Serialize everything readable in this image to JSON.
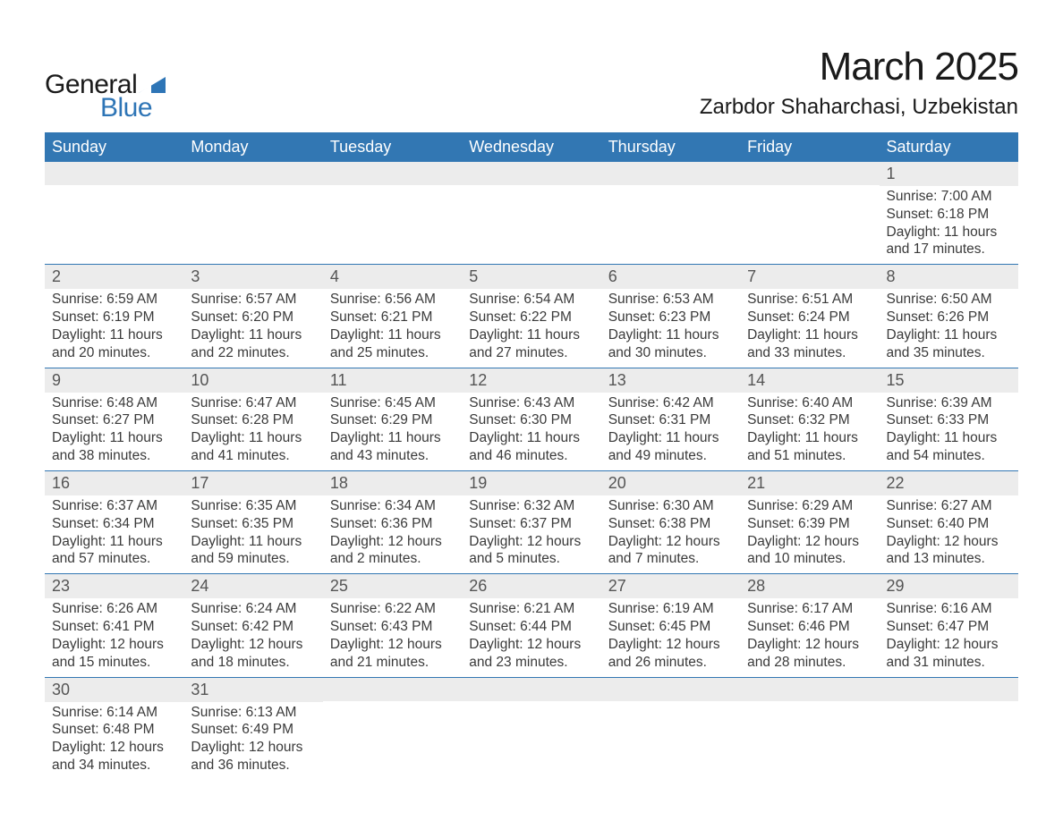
{
  "brand": {
    "general": "General",
    "blue": "Blue",
    "accent_color": "#2e75b6"
  },
  "title": "March 2025",
  "location": "Zarbdor Shaharchasi, Uzbekistan",
  "colors": {
    "header_bg": "#3277b3",
    "header_text": "#ffffff",
    "daynum_bg": "#ececec",
    "row_border": "#3277b3",
    "body_text": "#3a3a3a"
  },
  "weekdays": [
    "Sunday",
    "Monday",
    "Tuesday",
    "Wednesday",
    "Thursday",
    "Friday",
    "Saturday"
  ],
  "grid": {
    "first_weekday_index": 6,
    "days_in_month": 31
  },
  "days": {
    "1": {
      "sunrise": "7:00 AM",
      "sunset": "6:18 PM",
      "daylight": "11 hours and 17 minutes."
    },
    "2": {
      "sunrise": "6:59 AM",
      "sunset": "6:19 PM",
      "daylight": "11 hours and 20 minutes."
    },
    "3": {
      "sunrise": "6:57 AM",
      "sunset": "6:20 PM",
      "daylight": "11 hours and 22 minutes."
    },
    "4": {
      "sunrise": "6:56 AM",
      "sunset": "6:21 PM",
      "daylight": "11 hours and 25 minutes."
    },
    "5": {
      "sunrise": "6:54 AM",
      "sunset": "6:22 PM",
      "daylight": "11 hours and 27 minutes."
    },
    "6": {
      "sunrise": "6:53 AM",
      "sunset": "6:23 PM",
      "daylight": "11 hours and 30 minutes."
    },
    "7": {
      "sunrise": "6:51 AM",
      "sunset": "6:24 PM",
      "daylight": "11 hours and 33 minutes."
    },
    "8": {
      "sunrise": "6:50 AM",
      "sunset": "6:26 PM",
      "daylight": "11 hours and 35 minutes."
    },
    "9": {
      "sunrise": "6:48 AM",
      "sunset": "6:27 PM",
      "daylight": "11 hours and 38 minutes."
    },
    "10": {
      "sunrise": "6:47 AM",
      "sunset": "6:28 PM",
      "daylight": "11 hours and 41 minutes."
    },
    "11": {
      "sunrise": "6:45 AM",
      "sunset": "6:29 PM",
      "daylight": "11 hours and 43 minutes."
    },
    "12": {
      "sunrise": "6:43 AM",
      "sunset": "6:30 PM",
      "daylight": "11 hours and 46 minutes."
    },
    "13": {
      "sunrise": "6:42 AM",
      "sunset": "6:31 PM",
      "daylight": "11 hours and 49 minutes."
    },
    "14": {
      "sunrise": "6:40 AM",
      "sunset": "6:32 PM",
      "daylight": "11 hours and 51 minutes."
    },
    "15": {
      "sunrise": "6:39 AM",
      "sunset": "6:33 PM",
      "daylight": "11 hours and 54 minutes."
    },
    "16": {
      "sunrise": "6:37 AM",
      "sunset": "6:34 PM",
      "daylight": "11 hours and 57 minutes."
    },
    "17": {
      "sunrise": "6:35 AM",
      "sunset": "6:35 PM",
      "daylight": "11 hours and 59 minutes."
    },
    "18": {
      "sunrise": "6:34 AM",
      "sunset": "6:36 PM",
      "daylight": "12 hours and 2 minutes."
    },
    "19": {
      "sunrise": "6:32 AM",
      "sunset": "6:37 PM",
      "daylight": "12 hours and 5 minutes."
    },
    "20": {
      "sunrise": "6:30 AM",
      "sunset": "6:38 PM",
      "daylight": "12 hours and 7 minutes."
    },
    "21": {
      "sunrise": "6:29 AM",
      "sunset": "6:39 PM",
      "daylight": "12 hours and 10 minutes."
    },
    "22": {
      "sunrise": "6:27 AM",
      "sunset": "6:40 PM",
      "daylight": "12 hours and 13 minutes."
    },
    "23": {
      "sunrise": "6:26 AM",
      "sunset": "6:41 PM",
      "daylight": "12 hours and 15 minutes."
    },
    "24": {
      "sunrise": "6:24 AM",
      "sunset": "6:42 PM",
      "daylight": "12 hours and 18 minutes."
    },
    "25": {
      "sunrise": "6:22 AM",
      "sunset": "6:43 PM",
      "daylight": "12 hours and 21 minutes."
    },
    "26": {
      "sunrise": "6:21 AM",
      "sunset": "6:44 PM",
      "daylight": "12 hours and 23 minutes."
    },
    "27": {
      "sunrise": "6:19 AM",
      "sunset": "6:45 PM",
      "daylight": "12 hours and 26 minutes."
    },
    "28": {
      "sunrise": "6:17 AM",
      "sunset": "6:46 PM",
      "daylight": "12 hours and 28 minutes."
    },
    "29": {
      "sunrise": "6:16 AM",
      "sunset": "6:47 PM",
      "daylight": "12 hours and 31 minutes."
    },
    "30": {
      "sunrise": "6:14 AM",
      "sunset": "6:48 PM",
      "daylight": "12 hours and 34 minutes."
    },
    "31": {
      "sunrise": "6:13 AM",
      "sunset": "6:49 PM",
      "daylight": "12 hours and 36 minutes."
    }
  },
  "labels": {
    "sunrise": "Sunrise",
    "sunset": "Sunset",
    "daylight": "Daylight"
  }
}
